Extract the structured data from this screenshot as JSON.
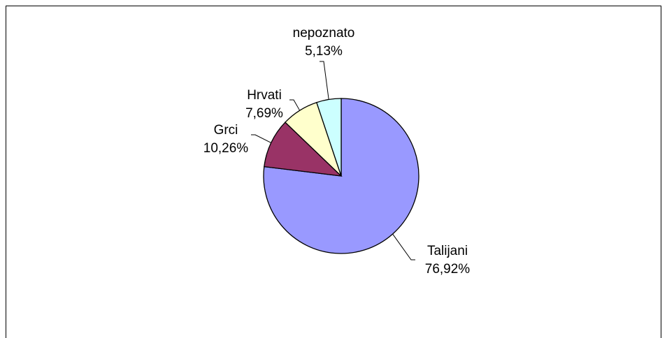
{
  "chart_data": {
    "type": "pie",
    "categories": [
      "Talijani",
      "Grci",
      "Hrvati",
      "nepoznato"
    ],
    "values": [
      76.92,
      10.26,
      7.69,
      5.13
    ],
    "value_labels": [
      "76,92%",
      "10,26%",
      "7,69%",
      "5,13%"
    ],
    "colors": [
      "#9999ff",
      "#993366",
      "#ffffcc",
      "#ccffff"
    ]
  }
}
